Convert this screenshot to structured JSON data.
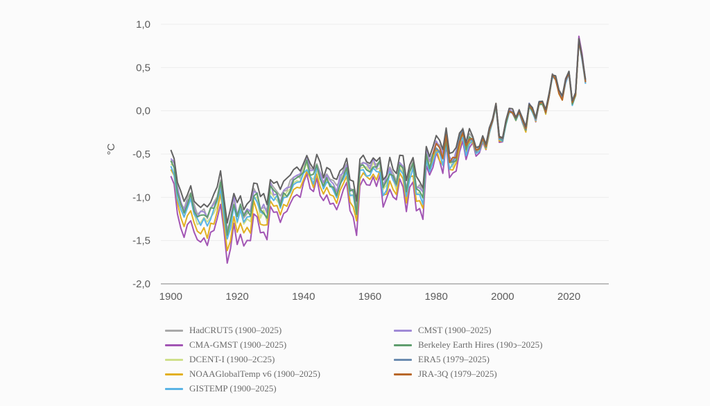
{
  "chart_data": {
    "type": "line",
    "title": "",
    "xlabel": "",
    "ylabel": "°C",
    "xlim": [
      1897,
      2032
    ],
    "ylim": [
      -2.0,
      1.0
    ],
    "grid": "horizontal",
    "legend_position": "bottom",
    "x_ticks": [
      {
        "value": 1900,
        "label": "1900"
      },
      {
        "value": 1920,
        "label": "1920"
      },
      {
        "value": 1940,
        "label": "1940"
      },
      {
        "value": 1960,
        "label": "1960"
      },
      {
        "value": 1980,
        "label": "1980"
      },
      {
        "value": 2000,
        "label": "2000"
      },
      {
        "value": 2020,
        "label": "2020"
      }
    ],
    "y_ticks": [
      {
        "value": 1.0,
        "label": "1,0"
      },
      {
        "value": 0.5,
        "label": "0,5"
      },
      {
        "value": 0.0,
        "label": "0,0"
      },
      {
        "value": -0.5,
        "label": "-0,5"
      },
      {
        "value": -1.0,
        "label": "-1,0"
      },
      {
        "value": -1.5,
        "label": "-1,5"
      },
      {
        "value": -2.0,
        "label": "-2,0"
      }
    ],
    "reference": {
      "start_year": 1900,
      "values": [
        -0.53,
        -0.62,
        -0.9,
        -1.02,
        -1.18,
        -1.05,
        -0.95,
        -1.12,
        -1.18,
        -1.2,
        -1.18,
        -1.22,
        -1.12,
        -1.08,
        -0.98,
        -0.82,
        -1.08,
        -1.42,
        -1.25,
        -1.02,
        -1.18,
        -1.08,
        -1.2,
        -1.15,
        -1.18,
        -0.92,
        -0.95,
        -1.12,
        -1.1,
        -1.16,
        -0.86,
        -0.92,
        -0.92,
        -1.02,
        -0.88,
        -0.9,
        -0.84,
        -0.72,
        -0.7,
        -0.74,
        -0.63,
        -0.55,
        -0.68,
        -0.72,
        -0.6,
        -0.72,
        -0.82,
        -0.78,
        -0.8,
        -0.85,
        -0.9,
        -0.78,
        -0.72,
        -0.66,
        -0.85,
        -0.92,
        -1.12,
        -0.62,
        -0.55,
        -0.62,
        -0.68,
        -0.58,
        -0.62,
        -0.58,
        -0.85,
        -0.78,
        -0.66,
        -0.72,
        -0.8,
        -0.55,
        -0.64,
        -0.86,
        -0.66,
        -0.58,
        -0.86,
        -0.9,
        -0.95,
        -0.44,
        -0.58,
        -0.48,
        -0.38,
        -0.42,
        -0.52,
        -0.28,
        -0.56,
        -0.55,
        -0.5,
        -0.3,
        -0.22,
        -0.38,
        -0.28,
        -0.32,
        -0.46,
        -0.42,
        -0.3,
        -0.4,
        -0.22,
        -0.1,
        0.08,
        -0.3,
        -0.32,
        -0.12,
        0.02,
        0.0,
        -0.08,
        0.0,
        -0.1,
        -0.2,
        0.08,
        0.02,
        -0.08,
        0.1,
        0.1,
        0.0,
        0.18,
        0.42,
        0.38,
        0.22,
        0.15,
        0.36,
        0.45,
        0.1,
        0.2,
        0.82,
        0.62,
        0.35
      ]
    },
    "series": [
      {
        "name": "HadCRUT5 (1900–2025)",
        "color": "#a9a9a9",
        "start": 1900,
        "end": 2025,
        "offset": 0.0,
        "scale": 1.0,
        "seed": 1
      },
      {
        "name": "CMA-GMST (1900–2025)",
        "color": "#a255b4",
        "start": 1900,
        "end": 2025,
        "offset": -0.07,
        "scale": 1.22,
        "seed": 2
      },
      {
        "name": "DCENT-I (1900–2025)",
        "color": "#cfe08a",
        "start": 1900,
        "end": 2025,
        "offset": -0.03,
        "scale": 1.05,
        "seed": 3
      },
      {
        "name": "NOAAGlobalTemp v6 (1900–2025)",
        "color": "#e2b021",
        "start": 1900,
        "end": 2025,
        "offset": -0.06,
        "scale": 1.12,
        "seed": 4
      },
      {
        "name": "GISTEMP (1900–2025)",
        "color": "#5ab4e5",
        "start": 1900,
        "end": 2025,
        "offset": -0.09,
        "scale": 1.0,
        "seed": 5
      },
      {
        "name": "CMST (1900–2025)",
        "color": "#a08ad6",
        "start": 1900,
        "end": 2025,
        "offset": -0.01,
        "scale": 1.0,
        "seed": 6
      },
      {
        "name": "Berkeley Earth Hires (1900–2025)",
        "color": "#5f9e6e",
        "start": 1900,
        "end": 2025,
        "offset": -0.04,
        "scale": 1.0,
        "seed": 7
      },
      {
        "name": "ERA5 (1979–2025)",
        "color": "#6c8cb0",
        "start": 1979,
        "end": 2025,
        "offset": -0.02,
        "scale": 1.0,
        "seed": 8
      },
      {
        "name": "JRA-3Q (1979–2025)",
        "color": "#b8672a",
        "start": 1979,
        "end": 2025,
        "offset": -0.03,
        "scale": 1.0,
        "seed": 9
      },
      {
        "name": "",
        "color": "#626262",
        "start": 1900,
        "end": 2025,
        "offset": 0.04,
        "scale": 0.95,
        "seed": 10
      }
    ]
  },
  "legend": {
    "items": [
      {
        "label": "HadCRUT5 (1900–2025)",
        "color": "#a9a9a9"
      },
      {
        "label": "CMA-GMST (1900–2025)",
        "color": "#a255b4"
      },
      {
        "label": "DCENT-I (1900–2C25)",
        "color": "#cfe08a"
      },
      {
        "label": "NOAAGlobalTemp v6 (1900–2025)",
        "color": "#e2b021"
      },
      {
        "label": "GISTEMP (1900–2025)",
        "color": "#5ab4e5"
      },
      {
        "label": "CMST (1900–2025)",
        "color": "#a08ad6"
      },
      {
        "label": "Berkeley Earth Hires (190ↄ–2025)",
        "color": "#5f9e6e"
      },
      {
        "label": "ERA5 (1979–2025)",
        "color": "#6c8cb0"
      },
      {
        "label": "JRA-3Q (1979–2025)",
        "color": "#b8672a"
      }
    ]
  }
}
